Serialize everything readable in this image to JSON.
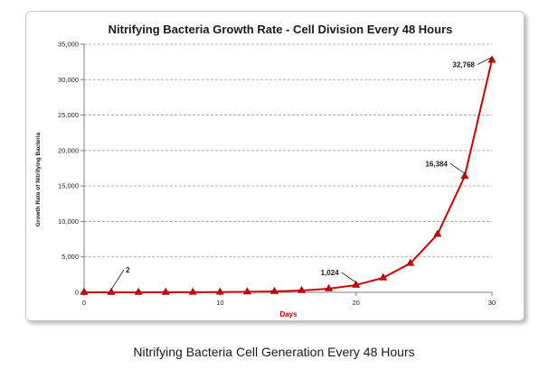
{
  "caption": "Nitrifying Bacteria Cell Generation Every 48 Hours",
  "chart_data": {
    "type": "line",
    "title": "Nitrifying Bacteria Growth Rate - Cell Division Every 48 Hours",
    "xlabel": "Days",
    "ylabel": "Growth Rate of Nitrifying Bacteria",
    "xlim": [
      0,
      30
    ],
    "ylim": [
      0,
      35000
    ],
    "x_ticks": [
      0,
      10,
      20,
      30
    ],
    "y_ticks": [
      0,
      5000,
      10000,
      15000,
      20000,
      25000,
      30000,
      35000
    ],
    "x_tick_labels": [
      "0",
      "10",
      "20",
      "30"
    ],
    "y_tick_labels": [
      "0",
      "5,000",
      "10,000",
      "15,000",
      "20,000",
      "25,000",
      "30,000",
      "35,000"
    ],
    "grid": "horizontal-dashed",
    "legend": "none",
    "series": [
      {
        "x": [
          0,
          2,
          4,
          6,
          8,
          10,
          12,
          14,
          16,
          18,
          20,
          22,
          24,
          26,
          28,
          30
        ],
        "values": [
          1,
          2,
          4,
          8,
          16,
          32,
          64,
          128,
          256,
          512,
          1024,
          2048,
          4096,
          8192,
          16384,
          32768
        ],
        "color": "#cc0000",
        "marker": "triangle"
      }
    ],
    "annotations": [
      {
        "x": 2,
        "y": 2,
        "text": "2",
        "placement": "upper-right"
      },
      {
        "x": 20,
        "y": 1024,
        "text": "1,024",
        "placement": "upper-left"
      },
      {
        "x": 28,
        "y": 16384,
        "text": "16,384",
        "placement": "upper-left"
      },
      {
        "x": 30,
        "y": 32768,
        "text": "32,768",
        "placement": "left"
      }
    ]
  }
}
